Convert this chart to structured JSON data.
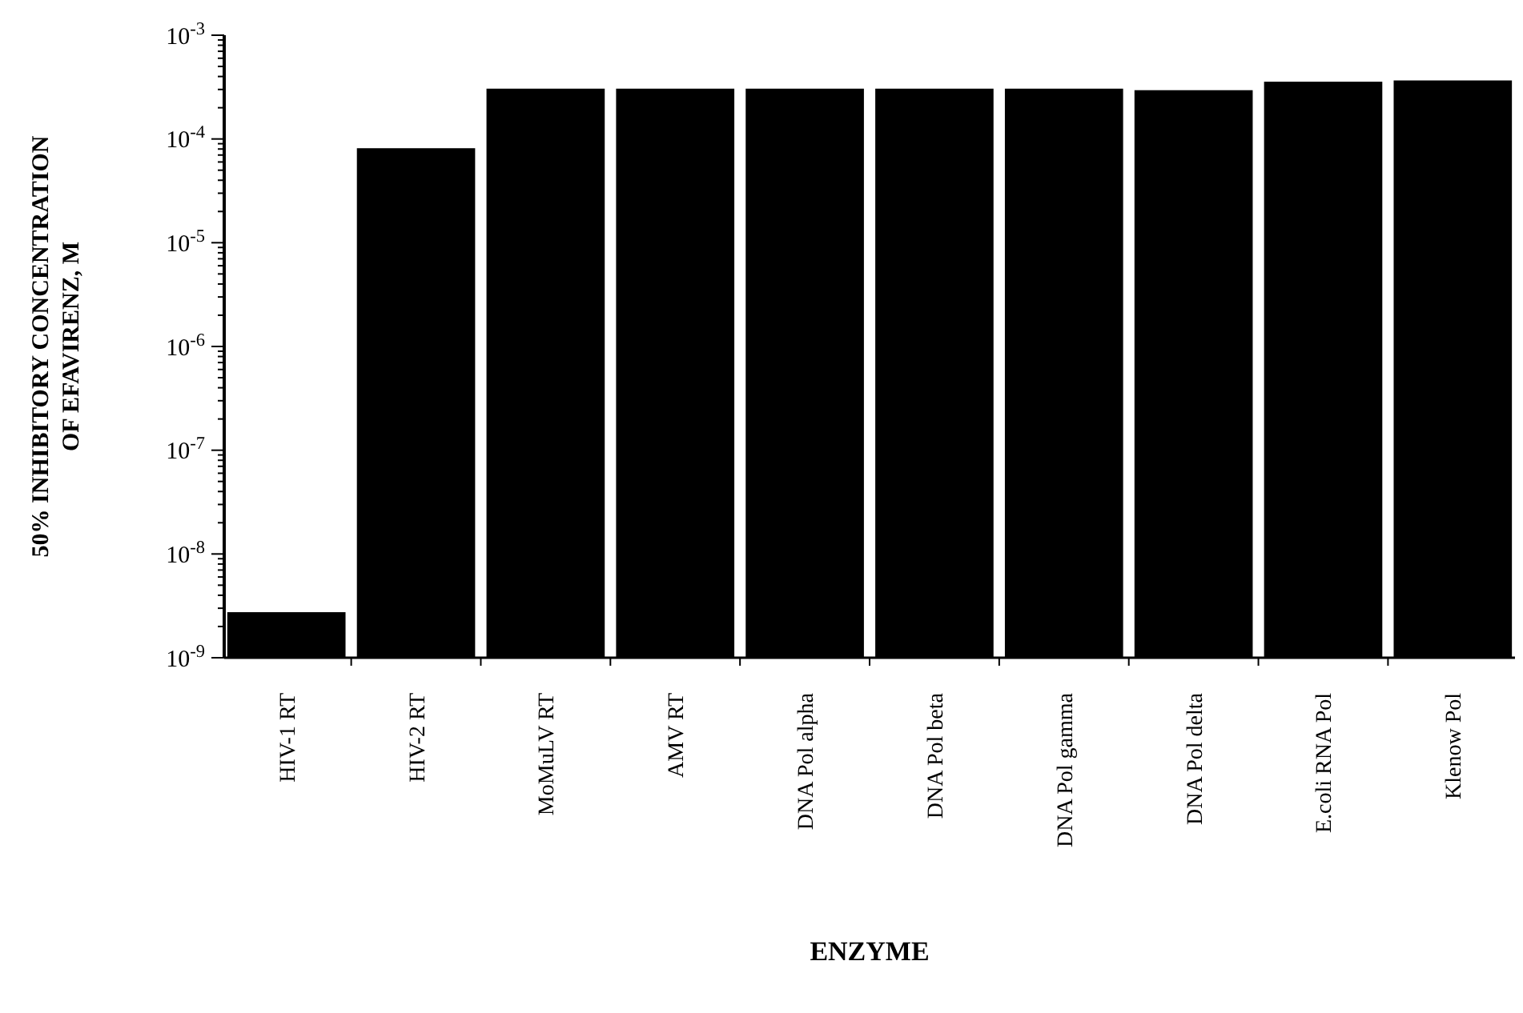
{
  "chart_data": {
    "type": "bar",
    "xlabel": "ENZYME",
    "ylabel": "50% INHIBITORY CONCENTRATION\nOF EFAVIRENZ, M",
    "categories": [
      "HIV-1 RT",
      "HIV-2 RT",
      "MoMuLV RT",
      "AMV RT",
      "DNA Pol alpha",
      "DNA Pol beta",
      "DNA Pol gamma",
      "DNA Pol delta",
      "E.coli RNA Pol",
      "Klenow Pol"
    ],
    "values": [
      2.7e-09,
      8e-05,
      0.0003,
      0.0003,
      0.0003,
      0.0003,
      0.0003,
      0.00029,
      0.00035,
      0.00036
    ],
    "color": "#000000",
    "log": true,
    "ylim": [
      1e-09,
      0.001
    ],
    "yticks": [
      {
        "value": 1e-09,
        "label": "10$^{-9}$"
      },
      {
        "value": 2e-09,
        "label": null
      },
      {
        "value": 3e-09,
        "label": null
      },
      {
        "value": 4e-09,
        "label": null
      },
      {
        "value": 5e-09,
        "label": null
      },
      {
        "value": 6e-09,
        "label": null
      },
      {
        "value": 7e-09,
        "label": null
      },
      {
        "value": 8e-09,
        "label": null
      },
      {
        "value": 9e-09,
        "label": null
      },
      {
        "value": 1e-08,
        "label": "10$^{-8}$"
      },
      {
        "value": 2e-08,
        "label": null
      },
      {
        "value": 3e-08,
        "label": null
      },
      {
        "value": 4e-08,
        "label": null
      },
      {
        "value": 5e-08,
        "label": null
      },
      {
        "value": 6e-08,
        "label": null
      },
      {
        "value": 7e-08,
        "label": null
      },
      {
        "value": 8e-08,
        "label": null
      },
      {
        "value": 9e-08,
        "label": null
      },
      {
        "value": 1e-07,
        "label": "10$^{-7}$"
      },
      {
        "value": 2e-07,
        "label": null
      },
      {
        "value": 3e-07,
        "label": null
      },
      {
        "value": 4e-07,
        "label": null
      },
      {
        "value": 5e-07,
        "label": null
      },
      {
        "value": 6e-07,
        "label": null
      },
      {
        "value": 7e-07,
        "label": null
      },
      {
        "value": 8e-07,
        "label": null
      },
      {
        "value": 9e-07,
        "label": null
      },
      {
        "value": 1e-06,
        "label": "10$^{-6}$"
      },
      {
        "value": 2e-06,
        "label": null
      },
      {
        "value": 3e-06,
        "label": null
      },
      {
        "value": 4e-06,
        "label": null
      },
      {
        "value": 5e-06,
        "label": null
      },
      {
        "value": 6e-06,
        "label": null
      },
      {
        "value": 7e-06,
        "label": null
      },
      {
        "value": 8e-06,
        "label": null
      },
      {
        "value": 9e-06,
        "label": null
      },
      {
        "value": 1e-05,
        "label": "10$^{-5}$"
      },
      {
        "value": 2e-05,
        "label": null
      },
      {
        "value": 3e-05,
        "label": null
      },
      {
        "value": 4e-05,
        "label": null
      },
      {
        "value": 5e-05,
        "label": null
      },
      {
        "value": 6e-05,
        "label": null
      },
      {
        "value": 7e-05,
        "label": null
      },
      {
        "value": 8e-05,
        "label": null
      },
      {
        "value": 9e-05,
        "label": null
      },
      {
        "value": 0.0001,
        "label": "10$^{-4}$"
      },
      {
        "value": 0.0002,
        "label": null
      },
      {
        "value": 0.0003,
        "label": null
      },
      {
        "value": 0.0004,
        "label": null
      },
      {
        "value": 0.0005,
        "label": null
      },
      {
        "value": 0.0006,
        "label": null
      },
      {
        "value": 0.0007,
        "label": null
      },
      {
        "value": 0.0008,
        "label": null
      },
      {
        "value": 0.0009,
        "label": null
      },
      {
        "value": 0.001,
        "label": "10$^{-3}$"
      }
    ],
    "grid": false
  }
}
